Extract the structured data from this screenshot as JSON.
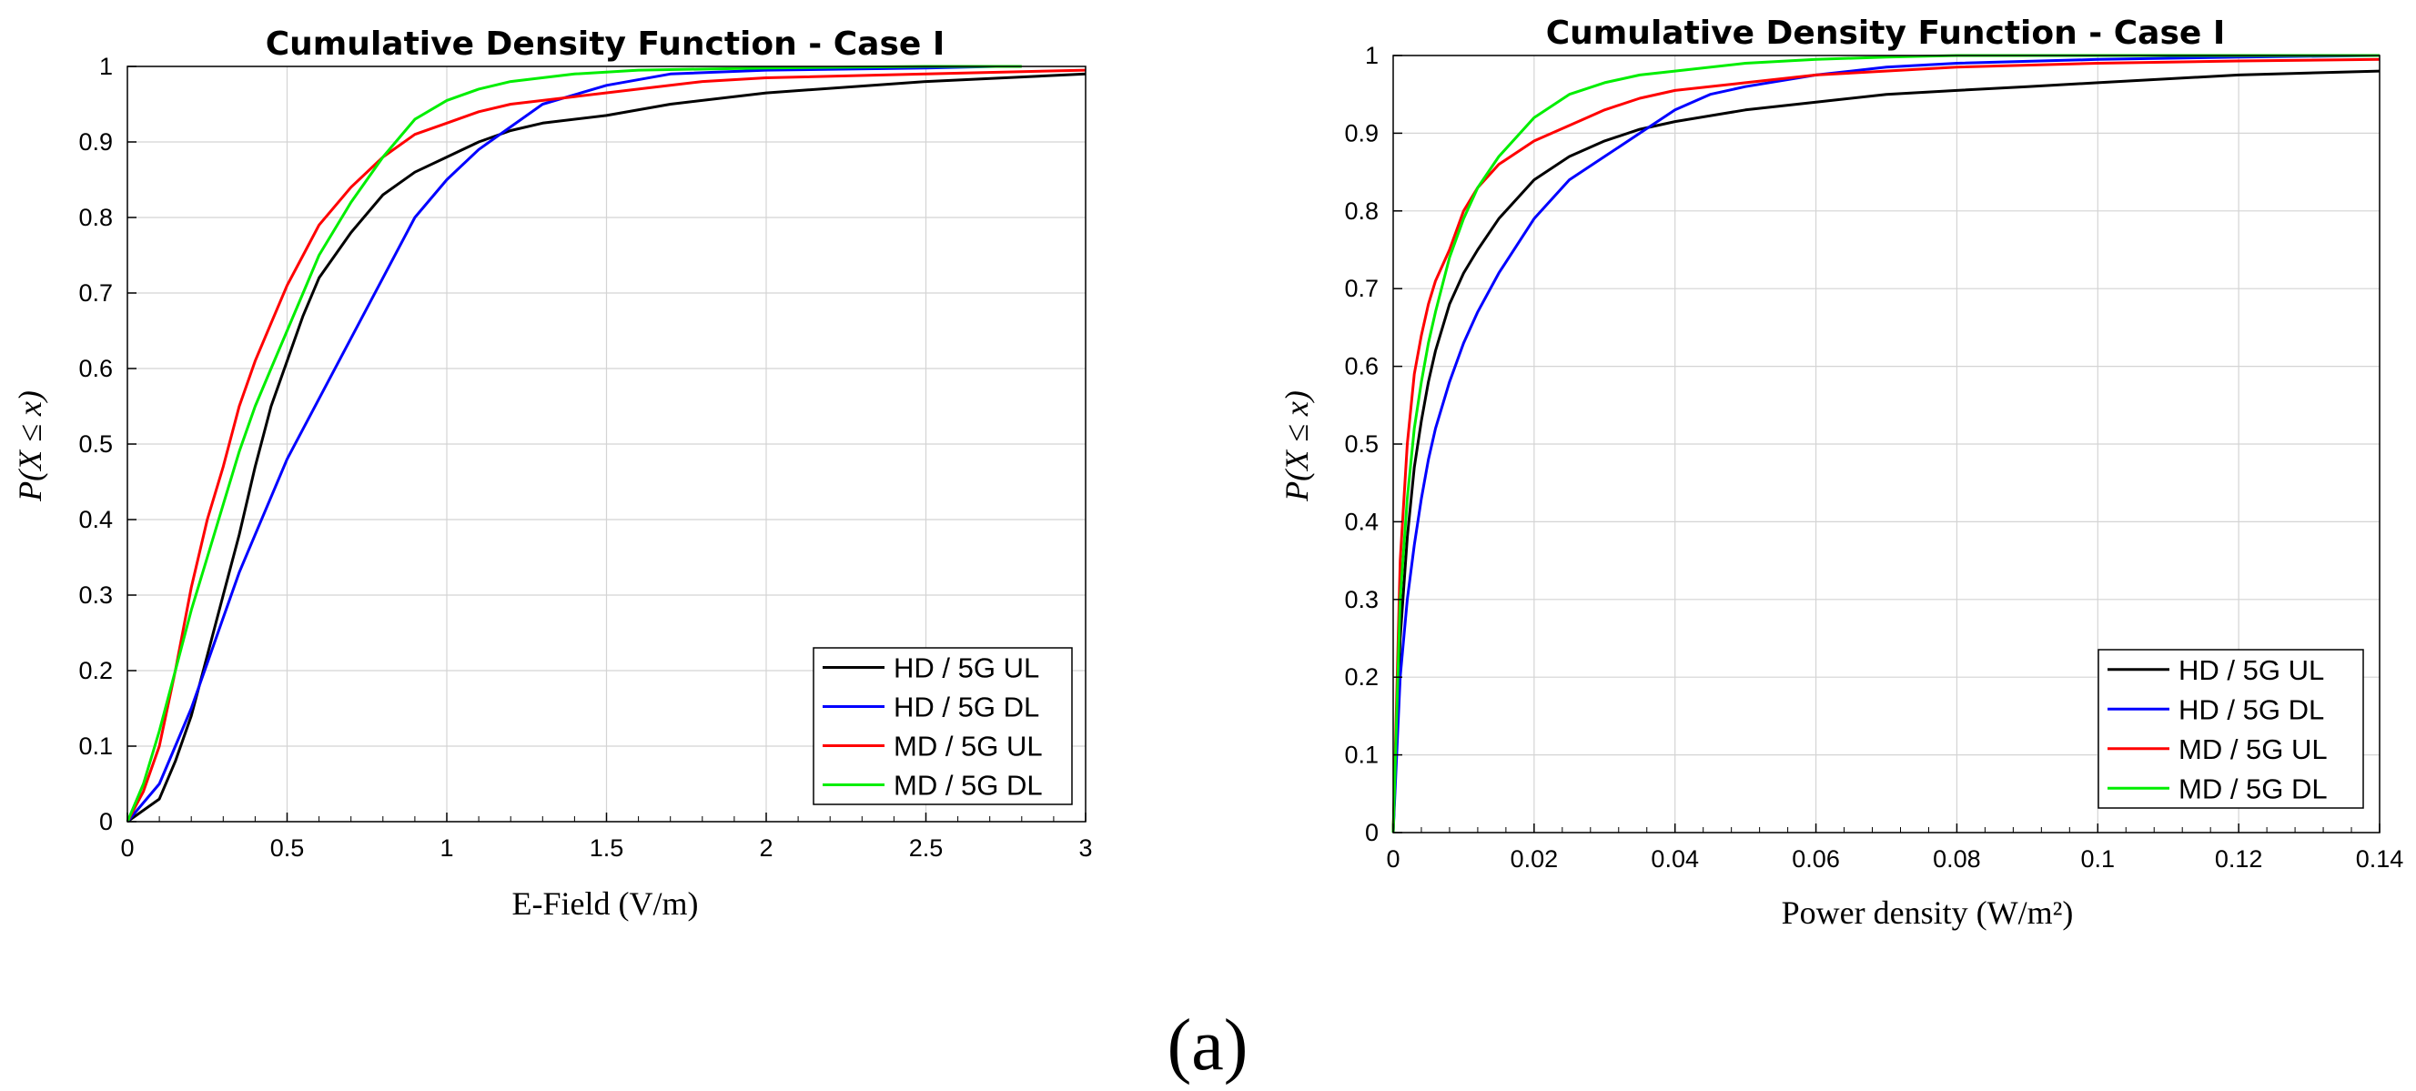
{
  "caption": "(a)",
  "colors": {
    "HD / 5G UL": "#000000",
    "HD / 5G DL": "#0000ff",
    "MD / 5G UL": "#ff0000",
    "MD / 5G DL": "#00ee00"
  },
  "chart_data": [
    {
      "type": "line",
      "title": "Cumulative Density Function - Case I",
      "xlabel": "E-Field (V/m)",
      "ylabel": "P(X ≤ x)",
      "xlim": [
        0,
        3
      ],
      "ylim": [
        0,
        1
      ],
      "xticks": [
        0,
        0.5,
        1,
        1.5,
        2,
        2.5,
        3
      ],
      "xtick_labels": [
        "0",
        "0.5",
        "1",
        "1.5",
        "2",
        "2.5",
        "3"
      ],
      "yticks": [
        0,
        0.1,
        0.2,
        0.3,
        0.4,
        0.5,
        0.6,
        0.7,
        0.8,
        0.9,
        1
      ],
      "ytick_labels": [
        "0",
        "0.1",
        "0.2",
        "0.3",
        "0.4",
        "0.5",
        "0.6",
        "0.7",
        "0.8",
        "0.9",
        "1"
      ],
      "grid": true,
      "legend_position": "bottom-right",
      "series": [
        {
          "name": "HD / 5G UL",
          "x": [
            0,
            0.1,
            0.15,
            0.2,
            0.25,
            0.3,
            0.35,
            0.4,
            0.45,
            0.5,
            0.55,
            0.6,
            0.7,
            0.8,
            0.9,
            1.0,
            1.1,
            1.2,
            1.3,
            1.5,
            1.7,
            2.0,
            2.5,
            3.0
          ],
          "y": [
            0,
            0.03,
            0.08,
            0.14,
            0.22,
            0.3,
            0.38,
            0.47,
            0.55,
            0.61,
            0.67,
            0.72,
            0.78,
            0.83,
            0.86,
            0.88,
            0.9,
            0.915,
            0.925,
            0.935,
            0.95,
            0.965,
            0.98,
            0.99
          ]
        },
        {
          "name": "HD / 5G DL",
          "x": [
            0,
            0.1,
            0.15,
            0.2,
            0.25,
            0.3,
            0.35,
            0.4,
            0.5,
            0.6,
            0.7,
            0.8,
            0.9,
            1.0,
            1.1,
            1.2,
            1.3,
            1.5,
            1.7,
            2.0,
            2.5,
            2.72
          ],
          "y": [
            0,
            0.05,
            0.1,
            0.15,
            0.21,
            0.27,
            0.33,
            0.38,
            0.48,
            0.56,
            0.64,
            0.72,
            0.8,
            0.85,
            0.89,
            0.92,
            0.95,
            0.975,
            0.99,
            0.995,
            0.998,
            1.0
          ]
        },
        {
          "name": "MD / 5G UL",
          "x": [
            0,
            0.05,
            0.1,
            0.15,
            0.2,
            0.25,
            0.3,
            0.35,
            0.4,
            0.45,
            0.5,
            0.55,
            0.6,
            0.7,
            0.8,
            0.9,
            1.0,
            1.1,
            1.2,
            1.4,
            1.6,
            1.8,
            2.0,
            2.5,
            3.0
          ],
          "y": [
            0,
            0.04,
            0.1,
            0.2,
            0.31,
            0.4,
            0.47,
            0.55,
            0.61,
            0.66,
            0.71,
            0.75,
            0.79,
            0.84,
            0.88,
            0.91,
            0.925,
            0.94,
            0.95,
            0.96,
            0.97,
            0.98,
            0.985,
            0.99,
            0.995
          ]
        },
        {
          "name": "MD / 5G DL",
          "x": [
            0,
            0.05,
            0.1,
            0.15,
            0.2,
            0.25,
            0.3,
            0.35,
            0.4,
            0.45,
            0.5,
            0.55,
            0.6,
            0.7,
            0.8,
            0.9,
            1.0,
            1.1,
            1.2,
            1.4,
            1.6,
            2.0,
            2.5,
            2.8
          ],
          "y": [
            0,
            0.05,
            0.12,
            0.2,
            0.28,
            0.35,
            0.42,
            0.49,
            0.55,
            0.6,
            0.65,
            0.7,
            0.75,
            0.82,
            0.88,
            0.93,
            0.955,
            0.97,
            0.98,
            0.99,
            0.995,
            0.998,
            1.0,
            1.0
          ]
        }
      ]
    },
    {
      "type": "line",
      "title": "Cumulative Density Function - Case I",
      "xlabel": "Power density (W/m²)",
      "ylabel": "P(X ≤ x)",
      "xlim": [
        0,
        0.14
      ],
      "ylim": [
        0,
        1
      ],
      "xticks": [
        0,
        0.02,
        0.04,
        0.06,
        0.08,
        0.1,
        0.12,
        0.14
      ],
      "xtick_labels": [
        "0",
        "0.02",
        "0.04",
        "0.06",
        "0.08",
        "0.1",
        "0.12",
        "0.14"
      ],
      "yticks": [
        0,
        0.1,
        0.2,
        0.3,
        0.4,
        0.5,
        0.6,
        0.7,
        0.8,
        0.9,
        1
      ],
      "ytick_labels": [
        "0",
        "0.1",
        "0.2",
        "0.3",
        "0.4",
        "0.5",
        "0.6",
        "0.7",
        "0.8",
        "0.9",
        "1"
      ],
      "grid": true,
      "legend_position": "bottom-right",
      "series": [
        {
          "name": "HD / 5G UL",
          "x": [
            0,
            0.001,
            0.002,
            0.003,
            0.004,
            0.005,
            0.006,
            0.008,
            0.01,
            0.012,
            0.015,
            0.02,
            0.025,
            0.03,
            0.035,
            0.04,
            0.05,
            0.06,
            0.07,
            0.08,
            0.09,
            0.1,
            0.12,
            0.14
          ],
          "y": [
            0,
            0.25,
            0.38,
            0.47,
            0.53,
            0.58,
            0.62,
            0.68,
            0.72,
            0.75,
            0.79,
            0.84,
            0.87,
            0.89,
            0.905,
            0.915,
            0.93,
            0.94,
            0.95,
            0.955,
            0.96,
            0.965,
            0.975,
            0.98
          ]
        },
        {
          "name": "HD / 5G DL",
          "x": [
            0,
            0.001,
            0.002,
            0.003,
            0.004,
            0.005,
            0.006,
            0.008,
            0.01,
            0.012,
            0.015,
            0.02,
            0.025,
            0.03,
            0.035,
            0.04,
            0.045,
            0.05,
            0.06,
            0.07,
            0.08,
            0.1,
            0.12,
            0.14
          ],
          "y": [
            0,
            0.2,
            0.3,
            0.37,
            0.43,
            0.48,
            0.52,
            0.58,
            0.63,
            0.67,
            0.72,
            0.79,
            0.84,
            0.87,
            0.9,
            0.93,
            0.95,
            0.96,
            0.975,
            0.985,
            0.99,
            0.995,
            0.998,
            1.0
          ]
        },
        {
          "name": "MD / 5G UL",
          "x": [
            0,
            0.001,
            0.002,
            0.003,
            0.004,
            0.005,
            0.006,
            0.008,
            0.01,
            0.012,
            0.015,
            0.02,
            0.025,
            0.03,
            0.035,
            0.04,
            0.05,
            0.06,
            0.08,
            0.1,
            0.12,
            0.14
          ],
          "y": [
            0,
            0.35,
            0.5,
            0.59,
            0.64,
            0.68,
            0.71,
            0.75,
            0.8,
            0.83,
            0.86,
            0.89,
            0.91,
            0.93,
            0.945,
            0.955,
            0.965,
            0.975,
            0.985,
            0.99,
            0.993,
            0.995
          ]
        },
        {
          "name": "MD / 5G DL",
          "x": [
            0,
            0.001,
            0.002,
            0.003,
            0.004,
            0.005,
            0.006,
            0.008,
            0.01,
            0.012,
            0.015,
            0.02,
            0.025,
            0.03,
            0.035,
            0.04,
            0.05,
            0.06,
            0.07,
            0.08,
            0.1,
            0.14
          ],
          "y": [
            0,
            0.3,
            0.43,
            0.52,
            0.58,
            0.63,
            0.67,
            0.74,
            0.79,
            0.83,
            0.87,
            0.92,
            0.95,
            0.965,
            0.975,
            0.98,
            0.99,
            0.995,
            0.998,
            1.0,
            1.0,
            1.0
          ]
        }
      ]
    }
  ]
}
